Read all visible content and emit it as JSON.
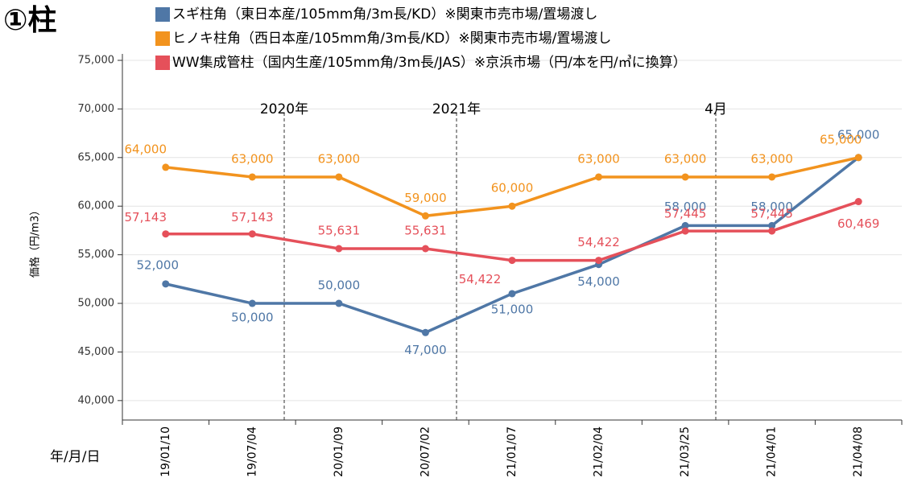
{
  "chart_data": {
    "type": "line",
    "title": "①柱",
    "y_label": "価格（円/m3）",
    "x_label": "年/月/日",
    "annotations": [
      "2020年",
      "2021年",
      "4月"
    ],
    "categories": [
      "19/01/10",
      "19/07/04",
      "20/01/09",
      "20/07/02",
      "21/01/07",
      "21/02/04",
      "21/03/25",
      "21/04/01",
      "21/04/08"
    ],
    "series": [
      {
        "name": "スギ柱角（東日本産/105mm角/3m長/KD）※関東市売市場/置場渡し",
        "color": "#4f77a6",
        "values": [
          52000,
          50000,
          50000,
          47000,
          51000,
          54000,
          58000,
          58000,
          65000
        ],
        "value_labels": [
          "52,000",
          "50,000",
          "50,000",
          "47,000",
          "51,000",
          "54,000",
          "58,000",
          "58,000",
          "65,000"
        ]
      },
      {
        "name": "ヒノキ柱角（西日本産/105mm角/3m長/KD）※関東市売市場/置場渡し",
        "color": "#f2931e",
        "values": [
          64000,
          63000,
          63000,
          59000,
          60000,
          63000,
          63000,
          63000,
          65000
        ],
        "value_labels": [
          "64,000",
          "63,000",
          "63,000",
          "59,000",
          "60,000",
          "63,000",
          "63,000",
          "63,000",
          "65,000"
        ]
      },
      {
        "name": "WW集成管柱（国内生産/105mm角/3m長/JAS）※京浜市場（円/本を円/㎥に換算）",
        "color": "#e5505a",
        "values": [
          57143,
          57143,
          55631,
          55631,
          54422,
          54422,
          57445,
          57445,
          60469
        ],
        "value_labels": [
          "57,143",
          "57,143",
          "55,631",
          "55,631",
          "54,422",
          "54,422",
          "57,445",
          "57,445",
          "60,469"
        ]
      }
    ],
    "ylim": [
      38000,
      75000
    ],
    "yticks": [
      {
        "value": 40000,
        "label": "40,000"
      },
      {
        "value": 45000,
        "label": "45,000"
      },
      {
        "value": 50000,
        "label": "50,000"
      },
      {
        "value": 55000,
        "label": "55,000"
      },
      {
        "value": 60000,
        "label": "60,000"
      },
      {
        "value": 65000,
        "label": "65,000"
      },
      {
        "value": 70000,
        "label": "70,000"
      },
      {
        "value": 75000,
        "label": "75,000"
      }
    ],
    "grid": true
  }
}
